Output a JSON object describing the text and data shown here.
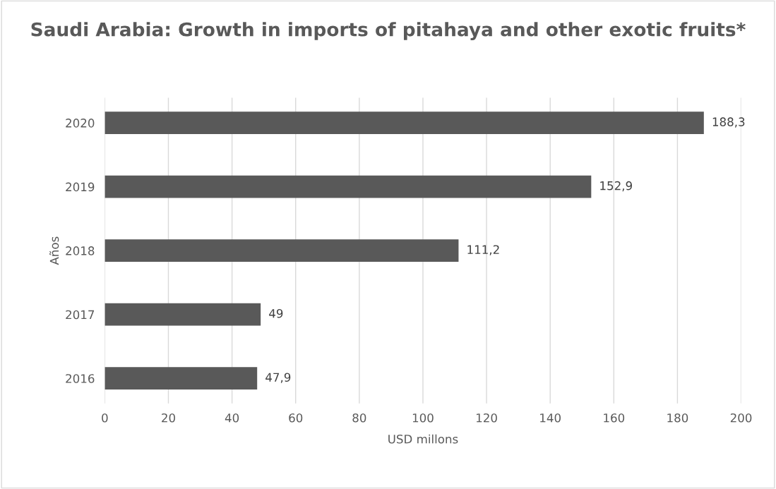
{
  "chart_data": {
    "type": "bar",
    "orientation": "horizontal",
    "title": "Saudi Arabia: Growth in imports of pitahaya and other exotic fruits*",
    "xlabel": "USD millons",
    "ylabel": "Años",
    "categories": [
      "2020",
      "2019",
      "2018",
      "2017",
      "2016"
    ],
    "values": [
      188.3,
      152.9,
      111.2,
      49,
      47.9
    ],
    "value_labels": [
      "188,3",
      "152,9",
      "111,2",
      "49",
      "47,9"
    ],
    "color": "#595959",
    "xlim": [
      0,
      200
    ],
    "xticks": [
      0,
      20,
      40,
      60,
      80,
      100,
      120,
      140,
      160,
      180,
      200
    ],
    "grid": "x",
    "legend": false
  }
}
